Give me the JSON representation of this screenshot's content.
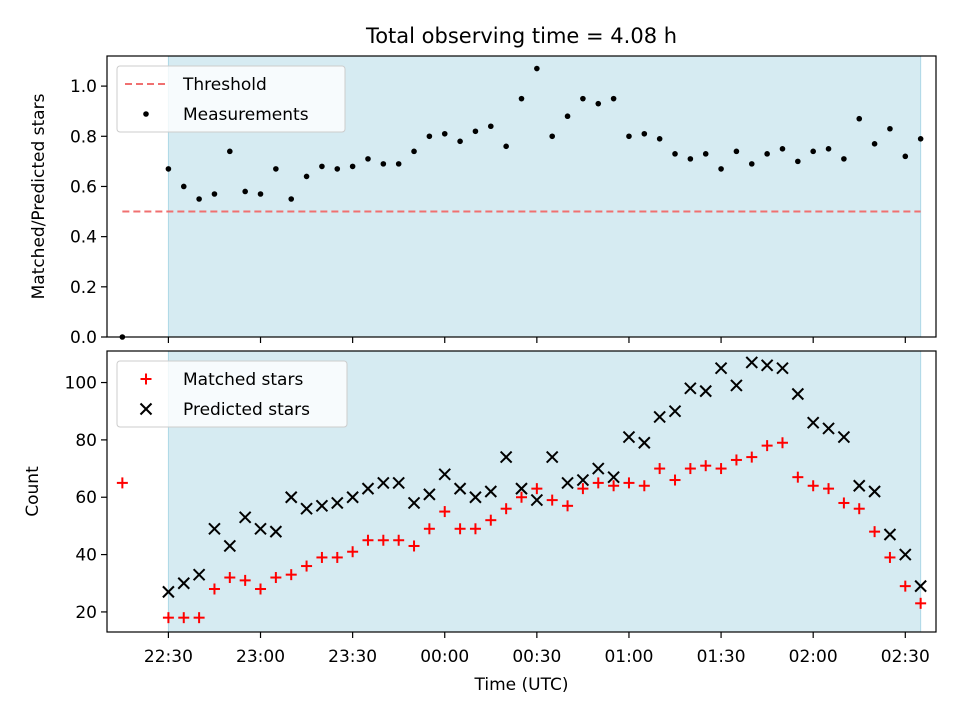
{
  "chart_data": [
    {
      "type": "scatter",
      "title": "Total observing time = 4.08 h",
      "ylabel": "Matched/Predicted stars",
      "ylim": [
        0,
        1.12
      ],
      "yticks": [
        0.0,
        0.2,
        0.4,
        0.6,
        0.8,
        1.0
      ],
      "ytick_labels": [
        "0.0",
        "0.2",
        "0.4",
        "0.6",
        "0.8",
        "1.0"
      ],
      "threshold": {
        "name": "Threshold",
        "value": 0.5,
        "x_start": -15,
        "color": "#f07070",
        "style": "dashed"
      },
      "shaded_span": {
        "start": 0,
        "end": 245,
        "color": "#add8e6"
      },
      "series": [
        {
          "name": "Measurements",
          "color": "#000000",
          "marker": "dot",
          "x": [
            -15,
            0,
            5,
            10,
            15,
            20,
            25,
            30,
            35,
            40,
            45,
            50,
            55,
            60,
            65,
            70,
            75,
            80,
            85,
            90,
            95,
            100,
            105,
            110,
            115,
            120,
            125,
            130,
            135,
            140,
            145,
            150,
            155,
            160,
            165,
            170,
            175,
            180,
            185,
            190,
            195,
            200,
            205,
            210,
            215,
            220,
            225,
            230,
            235,
            240,
            245
          ],
          "y": [
            0.0,
            0.67,
            0.6,
            0.55,
            0.57,
            0.74,
            0.58,
            0.57,
            0.67,
            0.55,
            0.64,
            0.68,
            0.67,
            0.68,
            0.71,
            0.69,
            0.69,
            0.74,
            0.8,
            0.81,
            0.78,
            0.82,
            0.84,
            0.76,
            0.95,
            1.07,
            0.8,
            0.88,
            0.95,
            0.93,
            0.95,
            0.8,
            0.81,
            0.79,
            0.73,
            0.71,
            0.73,
            0.67,
            0.74,
            0.69,
            0.73,
            0.75,
            0.7,
            0.74,
            0.75,
            0.71,
            0.87,
            0.77,
            0.83,
            0.72,
            0.79
          ]
        }
      ],
      "legend": "top-left",
      "grid": false
    },
    {
      "type": "scatter",
      "xlabel": "Time (UTC)",
      "ylabel": "Count",
      "ylim": [
        13,
        111
      ],
      "yticks": [
        20,
        40,
        60,
        80,
        100
      ],
      "ytick_labels": [
        "20",
        "40",
        "60",
        "80",
        "100"
      ],
      "xlim": [
        -20,
        250
      ],
      "x_unit": "minutes after 22:30 UTC",
      "xticks": [
        0,
        30,
        60,
        90,
        120,
        150,
        180,
        210,
        240
      ],
      "xtick_labels": [
        "22:30",
        "23:00",
        "23:30",
        "00:00",
        "00:30",
        "01:00",
        "01:30",
        "02:00",
        "02:30"
      ],
      "shaded_span": {
        "start": 0,
        "end": 245,
        "color": "#add8e6"
      },
      "series": [
        {
          "name": "Matched stars",
          "color": "#ff0000",
          "marker": "plus",
          "x": [
            -15,
            0,
            5,
            10,
            15,
            20,
            25,
            30,
            35,
            40,
            45,
            50,
            55,
            60,
            65,
            70,
            75,
            80,
            85,
            90,
            95,
            100,
            105,
            110,
            115,
            120,
            125,
            130,
            135,
            140,
            145,
            150,
            155,
            160,
            165,
            170,
            175,
            180,
            185,
            190,
            195,
            200,
            205,
            210,
            215,
            220,
            225,
            230,
            235,
            240,
            245
          ],
          "y": [
            65,
            18,
            18,
            18,
            28,
            32,
            31,
            28,
            32,
            33,
            36,
            39,
            39,
            41,
            45,
            45,
            45,
            43,
            49,
            55,
            49,
            49,
            52,
            56,
            60,
            63,
            59,
            57,
            63,
            65,
            64,
            65,
            64,
            70,
            66,
            70,
            71,
            70,
            73,
            74,
            78,
            79,
            67,
            64,
            63,
            58,
            56,
            48,
            39,
            29,
            23
          ]
        },
        {
          "name": "Predicted stars",
          "color": "#000000",
          "marker": "x",
          "x": [
            0,
            5,
            10,
            15,
            20,
            25,
            30,
            35,
            40,
            45,
            50,
            55,
            60,
            65,
            70,
            75,
            80,
            85,
            90,
            95,
            100,
            105,
            110,
            115,
            120,
            125,
            130,
            135,
            140,
            145,
            150,
            155,
            160,
            165,
            170,
            175,
            180,
            185,
            190,
            195,
            200,
            205,
            210,
            215,
            220,
            225,
            230,
            235,
            240,
            245
          ],
          "y": [
            27,
            30,
            33,
            49,
            43,
            53,
            49,
            48,
            60,
            56,
            57,
            58,
            60,
            63,
            65,
            65,
            58,
            61,
            68,
            63,
            60,
            62,
            74,
            63,
            59,
            74,
            65,
            66,
            70,
            67,
            81,
            79,
            88,
            90,
            98,
            97,
            105,
            99,
            107,
            106,
            105,
            96,
            86,
            84,
            81,
            64,
            62,
            47,
            40,
            29
          ]
        }
      ],
      "legend": "top-left",
      "grid": false
    }
  ]
}
